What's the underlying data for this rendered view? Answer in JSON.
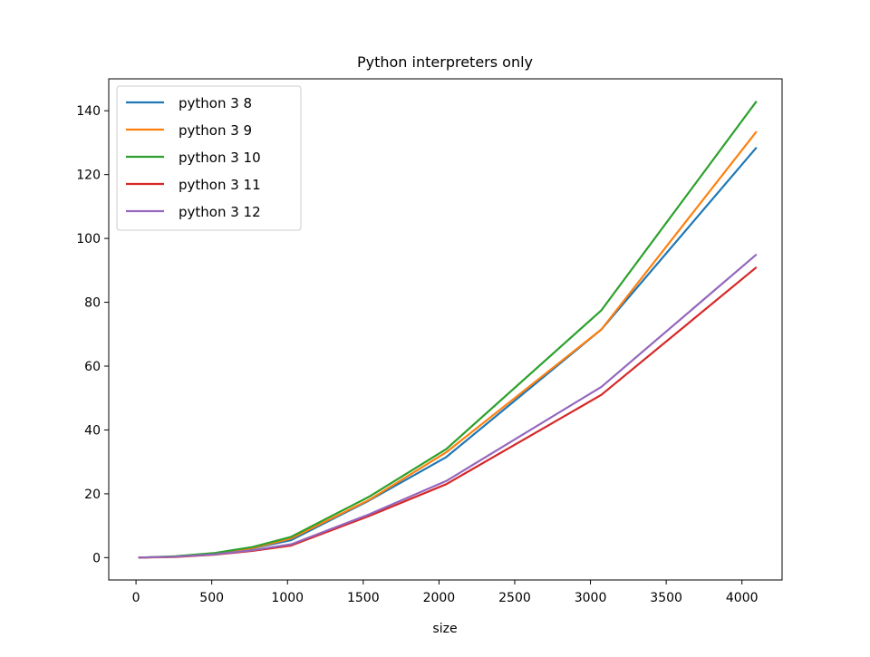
{
  "chart_data": {
    "type": "line",
    "title": "Python interpreters only",
    "xlabel": "size",
    "ylabel": "",
    "xlim": [
      -180,
      4265
    ],
    "ylim": [
      -7,
      150
    ],
    "xticks": [
      0,
      500,
      1000,
      1500,
      2000,
      2500,
      3000,
      3500,
      4000
    ],
    "yticks": [
      0,
      20,
      40,
      60,
      80,
      100,
      120,
      140
    ],
    "grid": false,
    "legend_position": "top-left",
    "x": [
      16,
      256,
      512,
      768,
      1024,
      1536,
      2048,
      3072,
      4096
    ],
    "series": [
      {
        "name": "python 3 8",
        "color": "#1f77b4",
        "values": [
          0,
          0.3,
          1.2,
          2.9,
          5.5,
          17.8,
          31.5,
          71.5,
          128.5
        ]
      },
      {
        "name": "python 3 9",
        "color": "#ff7f0e",
        "values": [
          0,
          0.3,
          1.3,
          3.0,
          6.0,
          18.0,
          33.0,
          71.5,
          133.5
        ]
      },
      {
        "name": "python 3 10",
        "color": "#2ca02c",
        "values": [
          0,
          0.4,
          1.4,
          3.3,
          6.5,
          19.0,
          34.0,
          77.5,
          143.0
        ]
      },
      {
        "name": "python 3 11",
        "color": "#d62728",
        "values": [
          0,
          0.2,
          0.9,
          2.1,
          3.8,
          13.0,
          23.0,
          51.0,
          91.0
        ]
      },
      {
        "name": "python 3 12",
        "color": "#9467bd",
        "values": [
          0,
          0.3,
          1.0,
          2.3,
          4.2,
          13.5,
          24.0,
          53.5,
          95.0
        ]
      }
    ]
  }
}
